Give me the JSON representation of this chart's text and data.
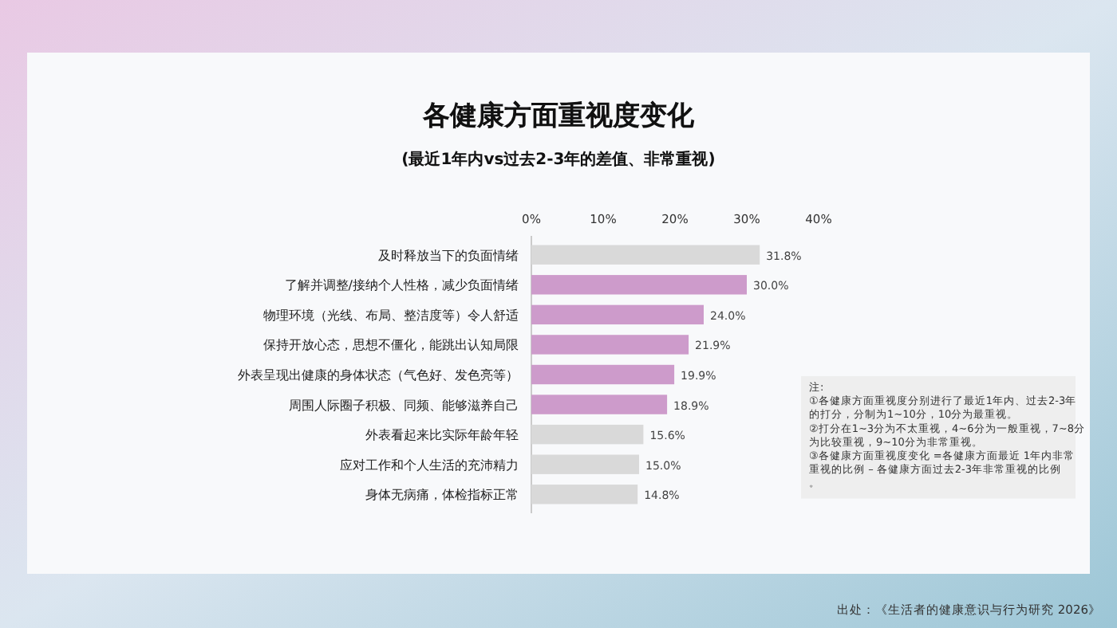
{
  "chart_data": {
    "type": "bar",
    "orientation": "horizontal",
    "title": "各健康方面重视度变化",
    "subtitle": "(最近1年内vs过去2-3年的差值、非常重视)",
    "categories": [
      "及时释放当下的负面情绪",
      "了解并调整/接纳个人性格，减少负面情绪",
      "物理环境（光线、布局、整洁度等）令人舒适",
      "保持开放心态，思想不僵化，能跳出认知局限",
      "外表呈现出健康的身体状态（气色好、发色亮等）",
      "周围人际圈子积极、同频、能够滋养自己",
      "外表看起来比实际年龄年轻",
      "应对工作和个人生活的充沛精力",
      "身体无病痛，体检指标正常"
    ],
    "values": [
      31.8,
      30.0,
      24.0,
      21.9,
      19.9,
      18.9,
      15.6,
      15.0,
      14.8
    ],
    "value_labels": [
      "31.8%",
      "30.0%",
      "24.0%",
      "21.9%",
      "19.9%",
      "18.9%",
      "15.6%",
      "15.0%",
      "14.8%"
    ],
    "colors": [
      "#d9d9d9",
      "#cd9bcb",
      "#cd9bcb",
      "#cd9bcb",
      "#cd9bcb",
      "#cd9bcb",
      "#d9d9d9",
      "#d9d9d9",
      "#d9d9d9"
    ],
    "xlim": [
      0,
      40
    ],
    "xticks": [
      {
        "value": 0,
        "label": "0%"
      },
      {
        "value": 10,
        "label": "10%"
      },
      {
        "value": 20,
        "label": "20%"
      },
      {
        "value": 30,
        "label": "30%"
      },
      {
        "value": 40,
        "label": "40%"
      }
    ],
    "annotations": [
      "注:",
      "①各健康方面重视度分别进行了最近1年内、过去2-3年的打分，分制为1~10分，10分为最重视。",
      "②打分在1~3分为不太重视，4~6分为一般重视，7~8分为比较重视，9~10分为非常重视。",
      "③各健康方面重视度变化 =各健康方面最近 1年内非常重视的比例 – 各健康方面过去2-3年非常重视的比例。",
      "出处：《生活者的健康意识与行为研究 2026》"
    ]
  }
}
